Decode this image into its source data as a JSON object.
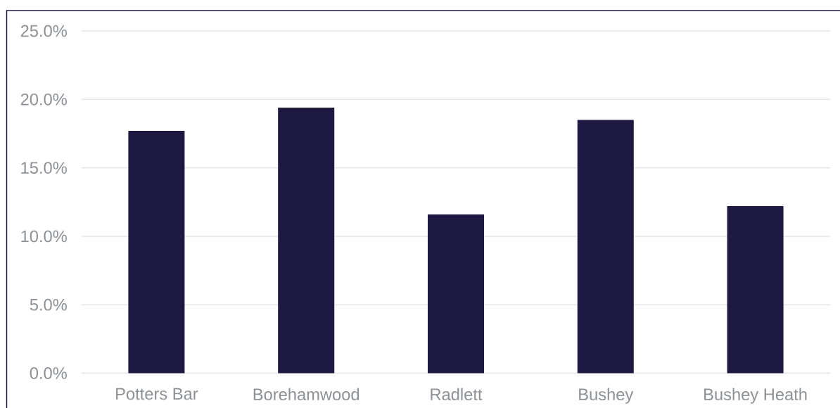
{
  "chart_data": {
    "type": "bar",
    "categories": [
      "Potters Bar",
      "Borehamwood",
      "Radlett",
      "Bushey",
      "Bushey Heath"
    ],
    "values": [
      17.7,
      19.4,
      11.6,
      18.5,
      12.2
    ],
    "color": "#1e1940",
    "ylim": [
      0,
      25
    ],
    "yticks": [
      {
        "value": 0,
        "label": "0.0%"
      },
      {
        "value": 5,
        "label": "5.0%"
      },
      {
        "value": 10,
        "label": "10.0%"
      },
      {
        "value": 15,
        "label": "15.0%"
      },
      {
        "value": 20,
        "label": "20.0%"
      },
      {
        "value": 25,
        "label": "25.0%"
      }
    ],
    "grid": "y"
  }
}
